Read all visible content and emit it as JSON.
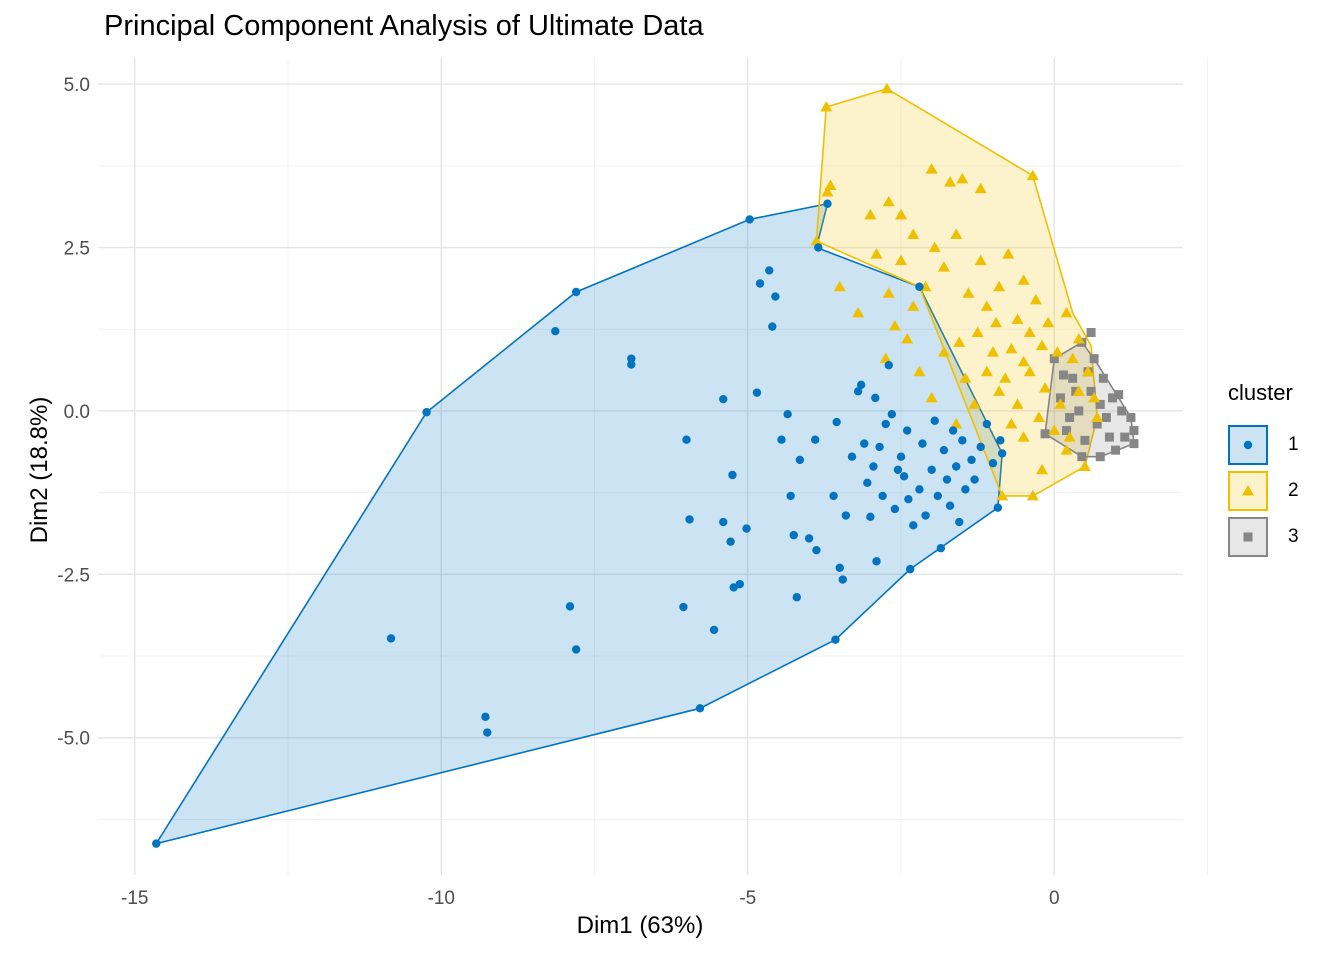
{
  "chart_data": {
    "type": "scatter",
    "title": "Principal Component Analysis of Ultimate Data",
    "xlabel": "Dim1 (63%)",
    "ylabel": "Dim2 (18.8%)",
    "xlim": [
      -15.6,
      2.1
    ],
    "ylim": [
      -7.1,
      5.4
    ],
    "x_ticks": [
      -15,
      -10,
      -5,
      0
    ],
    "x_tick_labels": [
      "-15",
      "-10",
      "-5",
      "0"
    ],
    "y_ticks": [
      -5,
      -2.5,
      0,
      2.5,
      5
    ],
    "y_tick_labels": [
      "-5.0",
      "-2.5",
      "0.0",
      "2.5",
      "5.0"
    ],
    "grid": true,
    "legend_title": "cluster",
    "legend_position": "right",
    "series": [
      {
        "name": "1",
        "color": "#0073C2",
        "marker": "circle",
        "hull": [
          [
            -14.65,
            -6.62
          ],
          [
            -10.24,
            -0.02
          ],
          [
            -7.8,
            1.82
          ],
          [
            -4.97,
            2.93
          ],
          [
            -3.7,
            3.17
          ],
          [
            -3.88,
            2.5
          ],
          [
            -2.2,
            1.9
          ],
          [
            -0.85,
            -0.65
          ],
          [
            -0.92,
            -1.48
          ],
          [
            -2.35,
            -2.42
          ],
          [
            -3.57,
            -3.5
          ],
          [
            -5.78,
            -4.55
          ]
        ],
        "points": [
          [
            -14.65,
            -6.62
          ],
          [
            -10.24,
            -0.02
          ],
          [
            -10.82,
            -3.48
          ],
          [
            -9.28,
            -4.68
          ],
          [
            -9.25,
            -4.92
          ],
          [
            -8.14,
            1.22
          ],
          [
            -7.8,
            1.82
          ],
          [
            -7.9,
            -2.99
          ],
          [
            -7.8,
            -3.65
          ],
          [
            -6.9,
            0.8
          ],
          [
            -6.9,
            0.71
          ],
          [
            -6.0,
            -0.44
          ],
          [
            -5.95,
            -1.66
          ],
          [
            -6.05,
            -3.0
          ],
          [
            -5.78,
            -4.55
          ],
          [
            -5.55,
            -3.35
          ],
          [
            -5.4,
            -1.7
          ],
          [
            -5.4,
            0.18
          ],
          [
            -5.28,
            -2.0
          ],
          [
            -5.25,
            -0.98
          ],
          [
            -5.23,
            -2.7
          ],
          [
            -5.13,
            -2.65
          ],
          [
            -5.02,
            -1.8
          ],
          [
            -4.97,
            2.93
          ],
          [
            -4.85,
            0.28
          ],
          [
            -4.8,
            1.95
          ],
          [
            -4.65,
            2.15
          ],
          [
            -4.6,
            1.29
          ],
          [
            -4.55,
            1.75
          ],
          [
            -4.45,
            -0.44
          ],
          [
            -4.35,
            -0.05
          ],
          [
            -4.3,
            -1.3
          ],
          [
            -4.25,
            -1.9
          ],
          [
            -4.2,
            -2.85
          ],
          [
            -4.15,
            -0.75
          ],
          [
            -4.0,
            -1.95
          ],
          [
            -3.9,
            -0.44
          ],
          [
            -3.88,
            -2.13
          ],
          [
            -3.85,
            2.5
          ],
          [
            -3.7,
            3.17
          ],
          [
            -3.6,
            -1.3
          ],
          [
            -3.57,
            -3.5
          ],
          [
            -3.55,
            -0.17
          ],
          [
            -3.5,
            -2.4
          ],
          [
            -3.45,
            -2.58
          ],
          [
            -3.4,
            -1.6
          ],
          [
            -3.3,
            -0.7
          ],
          [
            -3.2,
            0.3
          ],
          [
            -3.15,
            0.4
          ],
          [
            -3.1,
            -0.5
          ],
          [
            -3.05,
            -1.1
          ],
          [
            -3.0,
            -1.62
          ],
          [
            -2.95,
            -0.85
          ],
          [
            -2.92,
            0.2
          ],
          [
            -2.9,
            -2.3
          ],
          [
            -2.85,
            -0.55
          ],
          [
            -2.8,
            -1.3
          ],
          [
            -2.75,
            -0.2
          ],
          [
            -2.7,
            0.7
          ],
          [
            -2.65,
            -0.05
          ],
          [
            -2.6,
            -1.5
          ],
          [
            -2.55,
            -0.9
          ],
          [
            -2.5,
            -0.7
          ],
          [
            -2.45,
            -1.0
          ],
          [
            -2.4,
            -0.3
          ],
          [
            -2.38,
            -1.35
          ],
          [
            -2.35,
            -2.42
          ],
          [
            -2.3,
            -1.75
          ],
          [
            -2.2,
            1.9
          ],
          [
            -2.2,
            -1.2
          ],
          [
            -2.15,
            -0.5
          ],
          [
            -2.1,
            -1.6
          ],
          [
            -2.0,
            -0.9
          ],
          [
            -1.95,
            -0.15
          ],
          [
            -1.9,
            -1.3
          ],
          [
            -1.85,
            -2.1
          ],
          [
            -1.8,
            -0.6
          ],
          [
            -1.75,
            -1.05
          ],
          [
            -1.7,
            -1.45
          ],
          [
            -1.65,
            -0.3
          ],
          [
            -1.6,
            -0.85
          ],
          [
            -1.55,
            -1.7
          ],
          [
            -1.5,
            -0.45
          ],
          [
            -1.45,
            -1.2
          ],
          [
            -1.35,
            -0.75
          ],
          [
            -1.3,
            -1.05
          ],
          [
            -1.2,
            -0.55
          ],
          [
            -1.1,
            -0.2
          ],
          [
            -1.0,
            -0.8
          ],
          [
            -0.92,
            -1.48
          ],
          [
            -0.88,
            -0.45
          ],
          [
            -0.85,
            -0.65
          ]
        ]
      },
      {
        "name": "2",
        "color": "#EFC000",
        "marker": "triangle",
        "hull": [
          [
            -3.72,
            4.65
          ],
          [
            -2.73,
            4.93
          ],
          [
            -0.35,
            3.6
          ],
          [
            0.3,
            1.5
          ],
          [
            0.6,
            1.0
          ],
          [
            0.7,
            -0.1
          ],
          [
            0.5,
            -0.85
          ],
          [
            -0.35,
            -1.3
          ],
          [
            -0.85,
            -1.3
          ],
          [
            -2.2,
            1.9
          ],
          [
            -3.88,
            2.6
          ]
        ],
        "points": [
          [
            -3.72,
            4.65
          ],
          [
            -2.73,
            4.93
          ],
          [
            -3.7,
            3.35
          ],
          [
            -3.65,
            3.45
          ],
          [
            -3.88,
            2.6
          ],
          [
            -3.0,
            3.0
          ],
          [
            -2.7,
            3.2
          ],
          [
            -2.5,
            3.0
          ],
          [
            -2.3,
            2.7
          ],
          [
            -2.0,
            3.7
          ],
          [
            -1.7,
            3.5
          ],
          [
            -1.5,
            3.55
          ],
          [
            -1.2,
            3.4
          ],
          [
            -0.35,
            3.6
          ],
          [
            -2.9,
            2.4
          ],
          [
            -2.7,
            1.8
          ],
          [
            -2.5,
            2.3
          ],
          [
            -2.3,
            1.6
          ],
          [
            -2.1,
            1.9
          ],
          [
            -1.95,
            2.5
          ],
          [
            -1.8,
            2.2
          ],
          [
            -1.6,
            2.7
          ],
          [
            -1.4,
            1.8
          ],
          [
            -1.2,
            2.3
          ],
          [
            -1.1,
            1.6
          ],
          [
            -0.9,
            1.9
          ],
          [
            -0.75,
            2.4
          ],
          [
            -0.6,
            1.4
          ],
          [
            -0.5,
            2.0
          ],
          [
            -0.4,
            1.2
          ],
          [
            -0.3,
            1.7
          ],
          [
            -0.2,
            1.0
          ],
          [
            -0.1,
            1.35
          ],
          [
            0.05,
            0.9
          ],
          [
            0.2,
            1.5
          ],
          [
            0.3,
            0.8
          ],
          [
            0.4,
            1.1
          ],
          [
            0.55,
            0.6
          ],
          [
            0.65,
            0.2
          ],
          [
            0.7,
            -0.1
          ],
          [
            0.5,
            -0.85
          ],
          [
            0.2,
            -0.6
          ],
          [
            0.0,
            -0.3
          ],
          [
            -0.2,
            -0.9
          ],
          [
            -0.35,
            -1.3
          ],
          [
            -0.5,
            -0.4
          ],
          [
            -0.7,
            -0.2
          ],
          [
            -0.85,
            -1.3
          ],
          [
            -0.9,
            0.3
          ],
          [
            -1.1,
            0.6
          ],
          [
            -1.3,
            0.1
          ],
          [
            -1.45,
            0.5
          ],
          [
            -1.6,
            -0.2
          ],
          [
            -1.8,
            0.9
          ],
          [
            -2.0,
            0.2
          ],
          [
            -2.2,
            0.6
          ],
          [
            -2.4,
            1.1
          ],
          [
            -2.6,
            1.3
          ],
          [
            -3.2,
            1.5
          ],
          [
            -3.5,
            1.9
          ],
          [
            -1.0,
            0.9
          ],
          [
            -0.8,
            0.5
          ],
          [
            -0.6,
            0.1
          ],
          [
            -0.4,
            0.6
          ],
          [
            -0.25,
            -0.1
          ],
          [
            -0.15,
            0.35
          ],
          [
            0.1,
            0.1
          ],
          [
            0.25,
            -0.4
          ],
          [
            0.4,
            0.3
          ],
          [
            -1.25,
            1.2
          ],
          [
            -0.95,
            1.35
          ],
          [
            -1.55,
            1.05
          ],
          [
            -0.7,
            0.95
          ],
          [
            -0.5,
            0.75
          ],
          [
            -2.75,
            0.8
          ]
        ]
      },
      {
        "name": "3",
        "color": "#868686",
        "marker": "square",
        "hull": [
          [
            0.0,
            0.8
          ],
          [
            0.45,
            1.05
          ],
          [
            0.65,
            0.8
          ],
          [
            1.25,
            -0.1
          ],
          [
            1.3,
            -0.5
          ],
          [
            0.75,
            -0.7
          ],
          [
            0.45,
            -0.7
          ],
          [
            -0.15,
            -0.35
          ]
        ],
        "points": [
          [
            0.0,
            0.8
          ],
          [
            0.45,
            1.05
          ],
          [
            0.6,
            1.2
          ],
          [
            0.65,
            0.8
          ],
          [
            0.8,
            0.5
          ],
          [
            0.95,
            0.2
          ],
          [
            1.1,
            0.0
          ],
          [
            1.25,
            -0.1
          ],
          [
            1.3,
            -0.3
          ],
          [
            1.3,
            -0.5
          ],
          [
            0.75,
            -0.7
          ],
          [
            0.45,
            -0.7
          ],
          [
            -0.15,
            -0.35
          ],
          [
            0.1,
            0.2
          ],
          [
            0.3,
            0.5
          ],
          [
            0.4,
            0.0
          ],
          [
            0.6,
            0.3
          ],
          [
            0.7,
            -0.2
          ],
          [
            0.9,
            -0.4
          ],
          [
            1.0,
            -0.6
          ],
          [
            0.2,
            -0.3
          ],
          [
            0.5,
            -0.45
          ],
          [
            0.85,
            -0.1
          ],
          [
            1.15,
            -0.4
          ],
          [
            0.35,
            0.3
          ],
          [
            0.55,
            0.6
          ],
          [
            0.75,
            0.1
          ],
          [
            0.15,
            0.55
          ],
          [
            1.05,
            0.25
          ],
          [
            0.25,
            -0.1
          ]
        ]
      }
    ]
  }
}
